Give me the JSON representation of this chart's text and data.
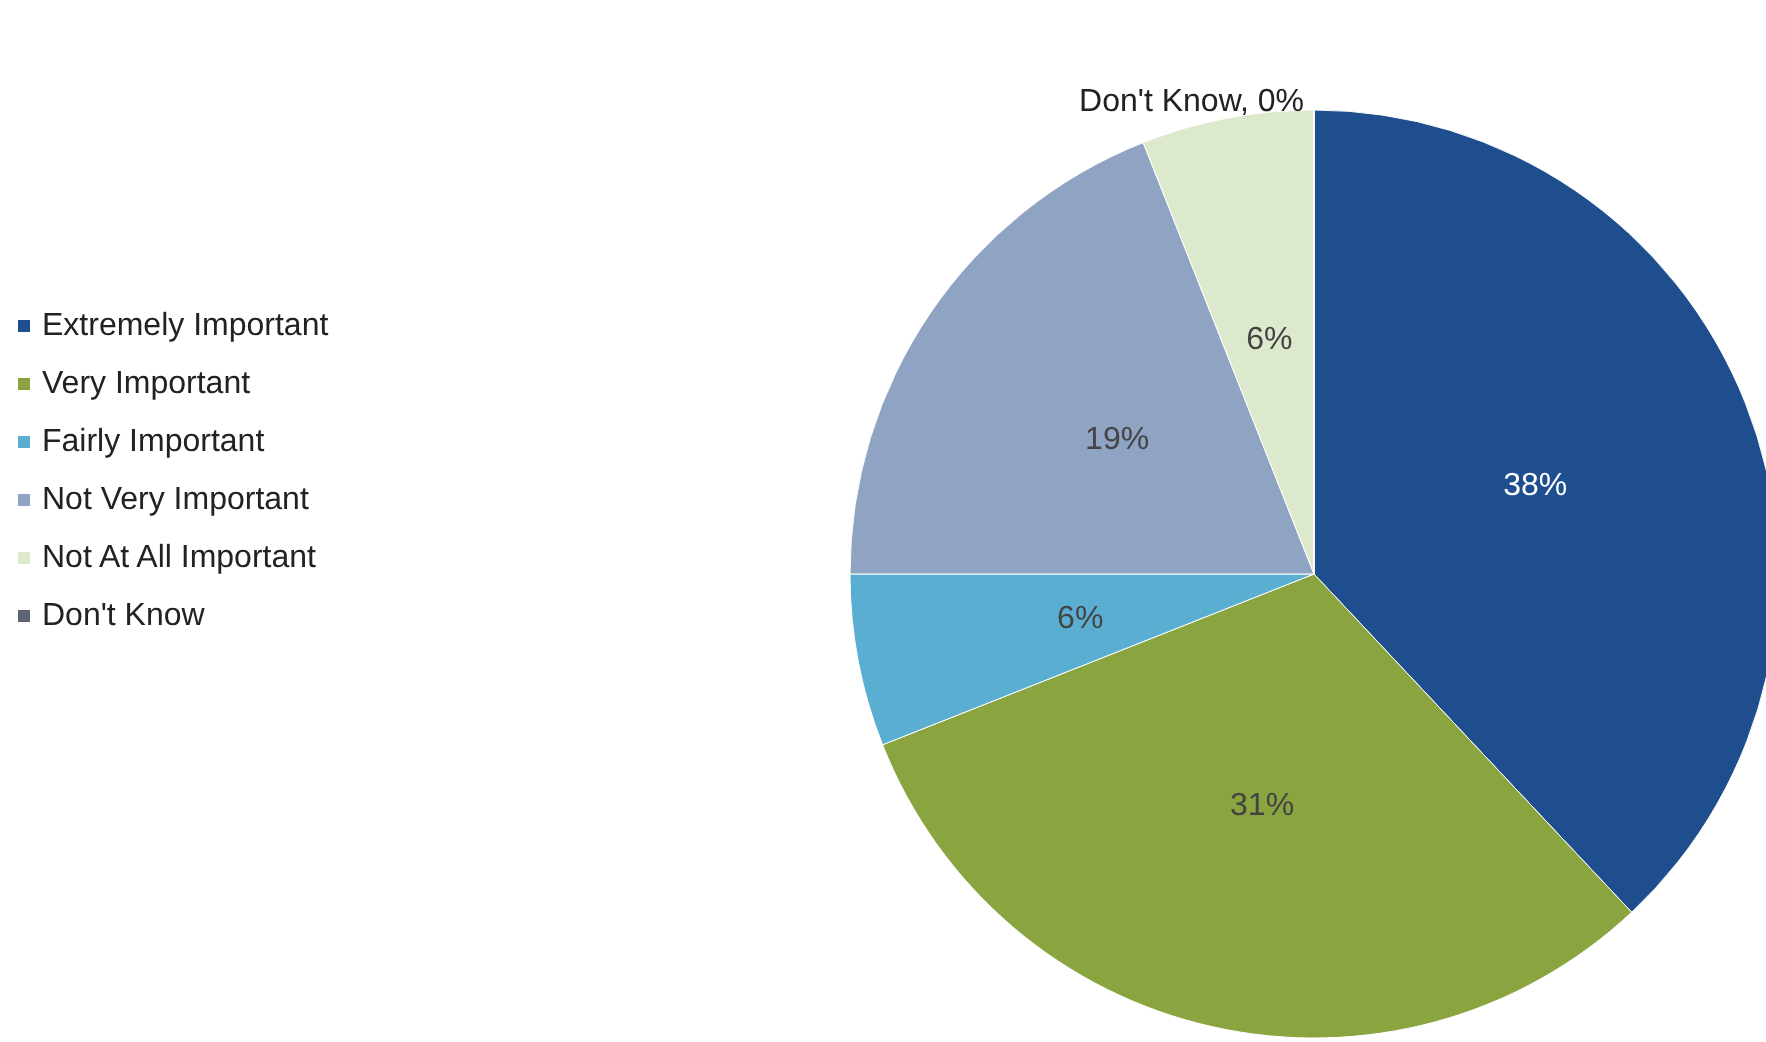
{
  "chart_data": {
    "type": "pie",
    "categories": [
      "Extremely Important",
      "Very Important",
      "Fairly Important",
      "Not Very Important",
      "Not At All Important",
      "Don't Know"
    ],
    "values": [
      38,
      31,
      6,
      19,
      6,
      0
    ],
    "colors": [
      "#1f4e8e",
      "#8aa53f",
      "#5aaed2",
      "#8fa4c2",
      "#dde9cc",
      "#5c6670"
    ],
    "value_labels": [
      "38%",
      "31%",
      "6%",
      "19%",
      "6%",
      "Don't Know, 0%"
    ],
    "legend": "left"
  }
}
